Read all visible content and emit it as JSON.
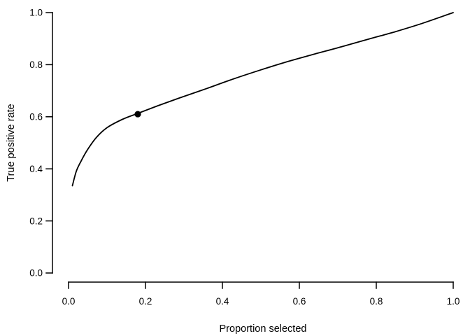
{
  "colors": {
    "background": "#ffffff",
    "foreground": "#000000",
    "curve": "#000000",
    "point": "#000000"
  },
  "chart_data": {
    "type": "line",
    "title": "",
    "xlabel": "Proportion selected",
    "ylabel": "True positive rate",
    "xlim": [
      0,
      1
    ],
    "ylim": [
      0,
      1
    ],
    "grid": false,
    "legend": "none",
    "x_ticks": {
      "values": [
        0.0,
        0.2,
        0.4,
        0.6,
        0.8,
        1.0
      ],
      "labels": [
        "0.0",
        "0.2",
        "0.4",
        "0.6",
        "0.8",
        "1.0"
      ]
    },
    "y_ticks": {
      "values": [
        0.0,
        0.2,
        0.4,
        0.6,
        0.8,
        1.0
      ],
      "labels": [
        "0.0",
        "0.2",
        "0.4",
        "0.6",
        "0.8",
        "1.0"
      ]
    },
    "series": [
      {
        "name": "true-positive-rate-vs-proportion-selected",
        "color": "#000000",
        "points": [
          [
            0.01,
            0.335
          ],
          [
            0.02,
            0.39
          ],
          [
            0.032,
            0.428
          ],
          [
            0.05,
            0.475
          ],
          [
            0.072,
            0.52
          ],
          [
            0.1,
            0.558
          ],
          [
            0.14,
            0.59
          ],
          [
            0.18,
            0.613
          ],
          [
            0.23,
            0.641
          ],
          [
            0.29,
            0.673
          ],
          [
            0.36,
            0.709
          ],
          [
            0.43,
            0.746
          ],
          [
            0.5,
            0.78
          ],
          [
            0.57,
            0.812
          ],
          [
            0.64,
            0.841
          ],
          [
            0.71,
            0.869
          ],
          [
            0.78,
            0.898
          ],
          [
            0.85,
            0.927
          ],
          [
            0.92,
            0.959
          ],
          [
            1.0,
            1.0
          ]
        ]
      }
    ],
    "marked_point": {
      "x": 0.18,
      "y": 0.61,
      "style": "filled-circle",
      "color": "#000000"
    }
  }
}
